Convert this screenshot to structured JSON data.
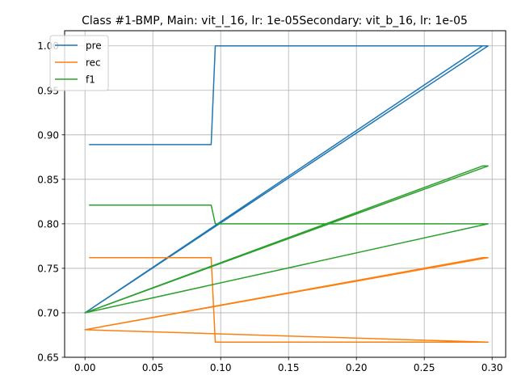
{
  "chart_data": {
    "type": "line",
    "title": "Class #1-BMP, Main: vit_l_16, lr: 1e-05Secondary: vit_b_16, lr: 1e-05",
    "xlabel": "",
    "ylabel": "",
    "xlim": [
      -0.015,
      0.31
    ],
    "ylim": [
      0.65,
      1.017
    ],
    "xticks": [
      0.0,
      0.05,
      0.1,
      0.15,
      0.2,
      0.25,
      0.3
    ],
    "xtick_labels": [
      "0.00",
      "0.05",
      "0.10",
      "0.15",
      "0.20",
      "0.25",
      "0.30"
    ],
    "yticks": [
      0.65,
      0.7,
      0.75,
      0.8,
      0.85,
      0.9,
      0.95,
      1.0
    ],
    "ytick_labels": [
      "0.65",
      "0.70",
      "0.75",
      "0.80",
      "0.85",
      "0.90",
      "0.95",
      "1.00"
    ],
    "grid": true,
    "legend_position": "top-left",
    "series": [
      {
        "name": "pre",
        "color": "#1f77b4",
        "points": [
          [
            0.003,
            0.889
          ],
          [
            0.093,
            0.889
          ],
          [
            0.096,
            1.0
          ],
          [
            0.297,
            1.0
          ],
          [
            0.0,
            0.7
          ],
          [
            0.293,
            1.0
          ],
          [
            0.297,
            1.0
          ]
        ]
      },
      {
        "name": "rec",
        "color": "#ff7f0e",
        "points": [
          [
            0.003,
            0.762
          ],
          [
            0.093,
            0.762
          ],
          [
            0.096,
            0.667
          ],
          [
            0.297,
            0.667
          ],
          [
            0.0,
            0.681
          ],
          [
            0.293,
            0.762
          ],
          [
            0.297,
            0.762
          ],
          [
            0.0,
            0.681
          ],
          [
            0.297,
            0.667
          ]
        ]
      },
      {
        "name": "f1",
        "color": "#2ca02c",
        "points": [
          [
            0.003,
            0.821
          ],
          [
            0.093,
            0.821
          ],
          [
            0.096,
            0.8
          ],
          [
            0.297,
            0.8
          ],
          [
            0.0,
            0.7
          ],
          [
            0.293,
            0.865
          ],
          [
            0.297,
            0.865
          ],
          [
            0.0,
            0.7
          ],
          [
            0.297,
            0.8
          ]
        ]
      }
    ]
  }
}
